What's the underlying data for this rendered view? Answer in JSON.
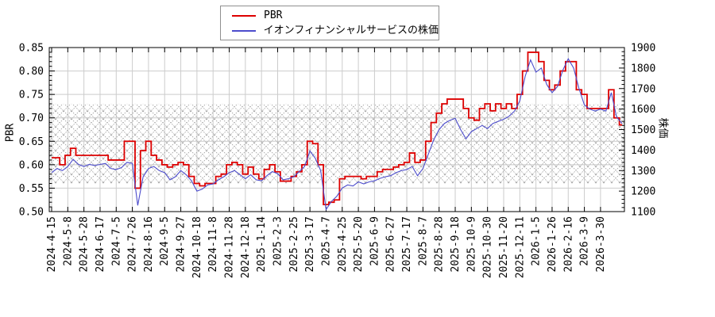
{
  "chart_data": {
    "type": "line",
    "title": "",
    "grid": true,
    "legend_position": "top-center",
    "legend": [
      {
        "label": "PBR",
        "color": "#dd0000"
      },
      {
        "label": "イオンフィナンシャルサービスの株価",
        "color": "#4c4ccc"
      }
    ],
    "left_axis": {
      "label": "PBR",
      "min": 0.5,
      "max": 0.85,
      "tick_step": 0.05,
      "minor_step": 0.01,
      "tick_labels": [
        "0.50",
        "0.55",
        "0.60",
        "0.65",
        "0.70",
        "0.75",
        "0.80",
        "0.85"
      ]
    },
    "right_axis": {
      "label": "株価",
      "min": 1100,
      "max": 1900,
      "tick_step": 100,
      "minor_step": 20,
      "tick_labels": [
        "1100",
        "1200",
        "1300",
        "1400",
        "1500",
        "1600",
        "1700",
        "1800",
        "1900"
      ]
    },
    "hatch_band": {
      "axis": "left",
      "from": 0.56,
      "to": 0.73
    },
    "x_tick_labels": [
      "2024-4-15",
      "2024-5-8",
      "2024-5-28",
      "2024-6-17",
      "2024-7-5",
      "2024-7-26",
      "2024-8-16",
      "2024-9-5",
      "2024-9-27",
      "2024-10-18",
      "2024-11-8",
      "2024-11-28",
      "2024-12-18",
      "2025-1-14",
      "2025-2-3",
      "2025-2-25",
      "2025-3-17",
      "2025-4-7",
      "2025-4-25",
      "2025-5-20",
      "2025-6-9",
      "2025-6-27",
      "2025-7-17",
      "2025-8-7",
      "2025-8-28",
      "2025-9-18",
      "2025-10-9",
      "2025-10-30",
      "2025-11-20",
      "2025-12-11",
      "2026-1-5",
      "2026-1-26",
      "2026-2-16",
      "2026-3-9",
      "2026-3-30"
    ],
    "points_per_tick_interval": 3,
    "series": [
      {
        "name": "PBR",
        "axis": "left",
        "color": "#dd0000",
        "style": "step",
        "width": 1.8,
        "values": [
          0.615,
          0.615,
          0.6,
          0.62,
          0.635,
          0.62,
          0.62,
          0.62,
          0.62,
          0.62,
          0.62,
          0.61,
          0.61,
          0.61,
          0.65,
          0.65,
          0.55,
          0.63,
          0.65,
          0.62,
          0.61,
          0.6,
          0.595,
          0.6,
          0.605,
          0.6,
          0.575,
          0.56,
          0.555,
          0.56,
          0.56,
          0.575,
          0.58,
          0.6,
          0.605,
          0.6,
          0.58,
          0.595,
          0.58,
          0.57,
          0.59,
          0.6,
          0.585,
          0.565,
          0.565,
          0.575,
          0.585,
          0.6,
          0.65,
          0.645,
          0.6,
          0.515,
          0.52,
          0.525,
          0.57,
          0.575,
          0.575,
          0.575,
          0.57,
          0.575,
          0.575,
          0.585,
          0.59,
          0.59,
          0.595,
          0.6,
          0.605,
          0.625,
          0.605,
          0.61,
          0.65,
          0.69,
          0.71,
          0.73,
          0.74,
          0.74,
          0.74,
          0.72,
          0.7,
          0.695,
          0.72,
          0.73,
          0.715,
          0.73,
          0.72,
          0.73,
          0.72,
          0.75,
          0.8,
          0.84,
          0.84,
          0.82,
          0.78,
          0.76,
          0.77,
          0.8,
          0.82,
          0.82,
          0.76,
          0.75,
          0.72,
          0.72,
          0.72,
          0.72,
          0.76,
          0.7,
          0.685
        ]
      },
      {
        "name": "イオンフィナンシャルサービスの株価",
        "axis": "right",
        "color": "#4c4ccc",
        "style": "line",
        "width": 1.1,
        "values": [
          1290,
          1310,
          1300,
          1320,
          1355,
          1330,
          1320,
          1330,
          1325,
          1330,
          1335,
          1310,
          1305,
          1315,
          1340,
          1335,
          1130,
          1270,
          1310,
          1320,
          1300,
          1290,
          1255,
          1270,
          1300,
          1280,
          1250,
          1200,
          1210,
          1230,
          1235,
          1255,
          1270,
          1290,
          1300,
          1280,
          1260,
          1280,
          1255,
          1250,
          1275,
          1295,
          1285,
          1255,
          1260,
          1270,
          1295,
          1320,
          1395,
          1360,
          1300,
          1110,
          1150,
          1175,
          1215,
          1230,
          1225,
          1245,
          1235,
          1245,
          1250,
          1262,
          1270,
          1275,
          1290,
          1300,
          1305,
          1320,
          1275,
          1310,
          1380,
          1450,
          1500,
          1530,
          1545,
          1555,
          1500,
          1455,
          1490,
          1505,
          1520,
          1505,
          1530,
          1540,
          1550,
          1565,
          1590,
          1640,
          1760,
          1840,
          1780,
          1800,
          1720,
          1680,
          1710,
          1790,
          1845,
          1800,
          1700,
          1620,
          1600,
          1590,
          1600,
          1590,
          1680,
          1560,
          1530
        ]
      }
    ]
  }
}
